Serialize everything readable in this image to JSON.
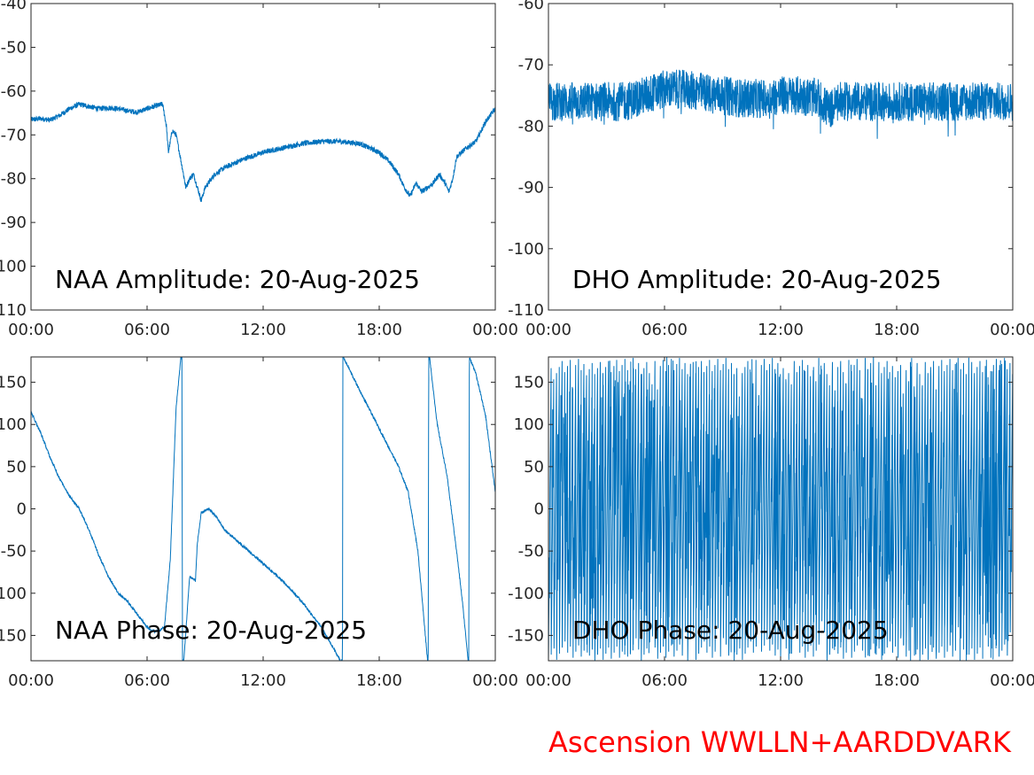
{
  "footer": {
    "label": "Ascension WWLLN+AARDDVARK",
    "color": "#ff0000"
  },
  "colors": {
    "trace": "#0072bd",
    "axes": "#262626"
  },
  "chart_data": [
    {
      "type": "line",
      "title": "NAA Amplitude: 20-Aug-2025",
      "xlabel": "",
      "ylabel": "",
      "xlim": [
        0,
        24
      ],
      "ylim": [
        -110,
        -40
      ],
      "xticks": [
        0,
        6,
        12,
        18,
        24
      ],
      "xtick_labels": [
        "00:00",
        "06:00",
        "12:00",
        "18:00",
        "00:00"
      ],
      "yticks": [
        -110,
        -100,
        -90,
        -80,
        -70,
        -60,
        -50,
        -40
      ],
      "ytick_labels": [
        "-110",
        "-100",
        "-90",
        "-80",
        "-70",
        "-60",
        "-50",
        "-40"
      ],
      "noise": 0.6,
      "series": [
        {
          "x": [
            0,
            0.5,
            1,
            1.5,
            2,
            2.5,
            3,
            3.5,
            4,
            4.5,
            5,
            5.5,
            6,
            6.5,
            6.8,
            7,
            7.1,
            7.3,
            7.5,
            7.8,
            8,
            8.2,
            8.4,
            8.6,
            8.8,
            9,
            9.5,
            10,
            11,
            12,
            13,
            14,
            15,
            16,
            17,
            18,
            18.5,
            19,
            19.3,
            19.6,
            19.9,
            20.2,
            20.5,
            20.8,
            21.1,
            21.4,
            21.6,
            21.8,
            22,
            22.5,
            23,
            23.5,
            24
          ],
          "values": [
            -66.5,
            -66.3,
            -66.6,
            -65.5,
            -64,
            -63,
            -63.5,
            -64,
            -63.8,
            -64,
            -64.5,
            -64.8,
            -64,
            -63.3,
            -63,
            -68,
            -74,
            -69,
            -70,
            -77,
            -82,
            -80,
            -79,
            -82,
            -85,
            -82,
            -79,
            -77.5,
            -75.5,
            -74,
            -73,
            -72,
            -71.5,
            -71.5,
            -72,
            -74,
            -76,
            -79,
            -82,
            -84,
            -81,
            -83,
            -82,
            -81,
            -79,
            -81,
            -83,
            -80,
            -75,
            -73,
            -71.5,
            -67,
            -64
          ]
        }
      ]
    },
    {
      "type": "line",
      "title": "DHO Amplitude: 20-Aug-2025",
      "xlabel": "",
      "ylabel": "",
      "xlim": [
        0,
        24
      ],
      "ylim": [
        -110,
        -60
      ],
      "xticks": [
        0,
        6,
        12,
        18,
        24
      ],
      "xtick_labels": [
        "00:00",
        "06:00",
        "12:00",
        "18:00",
        "00:00"
      ],
      "yticks": [
        -110,
        -100,
        -90,
        -80,
        -70,
        -60
      ],
      "ytick_labels": [
        "-110",
        "-100",
        "-90",
        "-80",
        "-70",
        "-60"
      ],
      "noise": 3.2,
      "series": [
        {
          "x": [
            0,
            1,
            2,
            3,
            4,
            5,
            6,
            7,
            8,
            9,
            10,
            11,
            12,
            13,
            14,
            14.5,
            15,
            16,
            17,
            18,
            19,
            20,
            21,
            22,
            23,
            24
          ],
          "values": [
            -76,
            -76,
            -76,
            -76,
            -76,
            -75,
            -74,
            -74,
            -74.5,
            -75,
            -75.5,
            -75.5,
            -75,
            -75,
            -75.5,
            -77.5,
            -76,
            -76,
            -76,
            -76,
            -76,
            -76,
            -76,
            -76,
            -76,
            -76
          ]
        }
      ]
    },
    {
      "type": "line",
      "title": "NAA Phase: 20-Aug-2025",
      "xlabel": "",
      "ylabel": "",
      "xlim": [
        0,
        24
      ],
      "ylim": [
        -180,
        180
      ],
      "xticks": [
        0,
        6,
        12,
        18,
        24
      ],
      "xtick_labels": [
        "00:00",
        "06:00",
        "12:00",
        "18:00",
        "00:00"
      ],
      "yticks": [
        -150,
        -100,
        -50,
        0,
        50,
        100,
        150
      ],
      "ytick_labels": [
        "-150",
        "-100",
        "-50",
        "0",
        "50",
        "100",
        "150"
      ],
      "noise": 1.5,
      "series": [
        {
          "x": [
            0,
            0.5,
            1,
            1.5,
            2,
            2.5,
            3,
            3.5,
            4,
            4.5,
            5,
            5.5,
            6,
            6.3,
            6.6,
            6.9,
            7.2,
            7.5,
            7.7,
            7.75,
            7.8,
            7.83,
            7.86,
            7.9,
            8.2,
            8.5,
            8.6,
            8.8,
            9.2,
            9.6,
            10,
            11,
            12,
            13,
            14,
            15,
            16,
            16.1,
            16.12,
            16.14,
            17,
            18,
            19,
            19.5,
            20,
            20.5,
            20.53,
            20.56,
            20.6,
            21,
            21.5,
            22,
            22.3,
            22.6,
            22.63,
            22.66,
            23,
            23.5,
            24
          ],
          "values": [
            115,
            90,
            60,
            35,
            15,
            0,
            -25,
            -55,
            -80,
            -100,
            -110,
            -125,
            -140,
            -145,
            -145,
            -140,
            -60,
            120,
            168,
            180,
            180,
            -180,
            -180,
            -180,
            -80,
            -85,
            -40,
            -5,
            0,
            -10,
            -25,
            -45,
            -65,
            -85,
            -110,
            -140,
            -180,
            -180,
            180,
            180,
            140,
            95,
            50,
            20,
            -50,
            -180,
            -180,
            180,
            180,
            100,
            40,
            -50,
            -110,
            -180,
            -180,
            180,
            160,
            110,
            20
          ]
        }
      ]
    },
    {
      "type": "line",
      "title": "DHO Phase: 20-Aug-2025",
      "xlabel": "",
      "ylabel": "",
      "xlim": [
        0,
        24
      ],
      "ylim": [
        -180,
        180
      ],
      "xticks": [
        0,
        6,
        12,
        18,
        24
      ],
      "xtick_labels": [
        "00:00",
        "06:00",
        "12:00",
        "18:00",
        "00:00"
      ],
      "yticks": [
        -150,
        -100,
        -50,
        0,
        50,
        100,
        150
      ],
      "ytick_labels": [
        "-150",
        "-100",
        "-50",
        "0",
        "50",
        "100",
        "150"
      ],
      "noise": 0,
      "wrap_cycles": 170,
      "series": [
        {
          "x": [
            0,
            24
          ],
          "values": [
            -180,
            180
          ]
        }
      ]
    }
  ]
}
